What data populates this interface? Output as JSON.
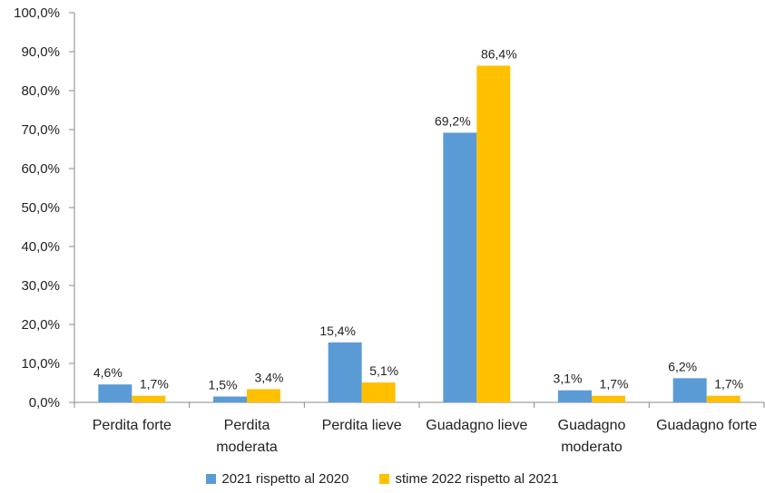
{
  "chart_data": {
    "type": "bar",
    "title": "",
    "xlabel": "",
    "ylabel": "",
    "ylim": [
      0,
      100
    ],
    "yticks": [
      "0,0%",
      "10,0%",
      "20,0%",
      "30,0%",
      "40,0%",
      "50,0%",
      "60,0%",
      "70,0%",
      "80,0%",
      "90,0%",
      "100,0%"
    ],
    "categories": [
      [
        "Perdita forte"
      ],
      [
        "Perdita",
        "moderata"
      ],
      [
        "Perdita lieve"
      ],
      [
        "Guadagno lieve"
      ],
      [
        "Guadagno",
        "moderato"
      ],
      [
        "Guadagno forte"
      ]
    ],
    "series": [
      {
        "name": "2021 rispetto al 2020",
        "color": "#5B9BD5",
        "values": [
          4.6,
          1.5,
          15.4,
          69.2,
          3.1,
          6.2
        ],
        "labels": [
          "4,6%",
          "1,5%",
          "15,4%",
          "69,2%",
          "3,1%",
          "6,2%"
        ]
      },
      {
        "name": "stime 2022 rispetto al 2021",
        "color": "#FFC000",
        "values": [
          1.7,
          3.4,
          5.1,
          86.4,
          1.7,
          1.7
        ],
        "labels": [
          "1,7%",
          "3,4%",
          "5,1%",
          "86,4%",
          "1,7%",
          "1,7%"
        ]
      }
    ],
    "grid": false,
    "legend_position": "bottom"
  }
}
